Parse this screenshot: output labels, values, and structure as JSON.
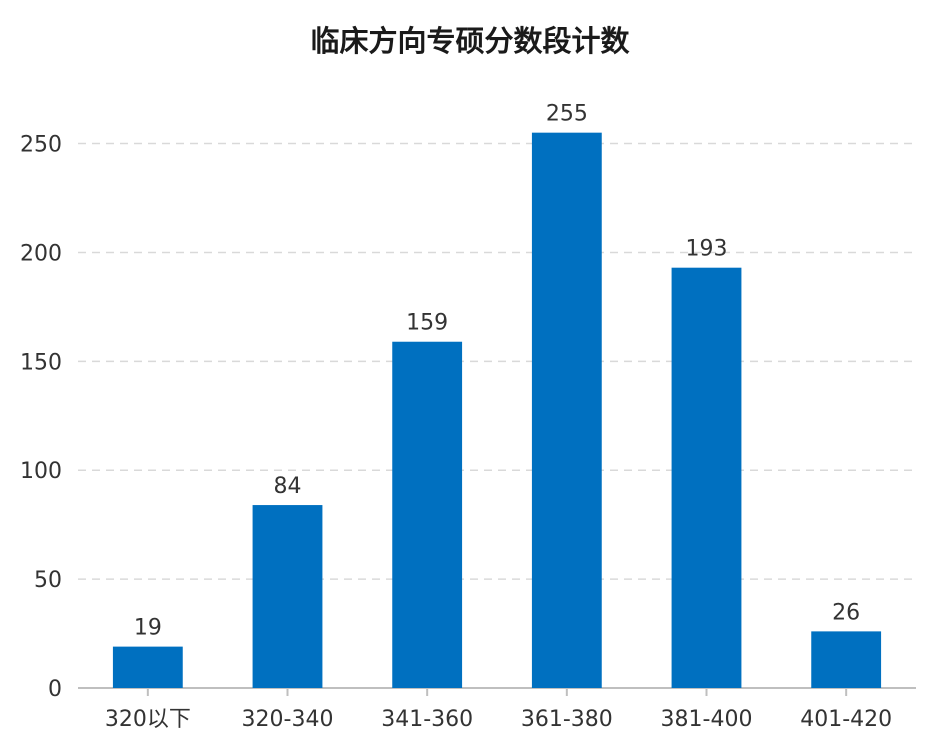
{
  "chart_data": {
    "type": "bar",
    "title": "临床方向专硕分数段计数",
    "categories": [
      "320以下",
      "320-340",
      "341-360",
      "361-380",
      "381-400",
      "401-420"
    ],
    "values": [
      19,
      84,
      159,
      255,
      193,
      26
    ],
    "ylim": [
      0,
      270
    ],
    "yticks": [
      0,
      50,
      100,
      150,
      200,
      250
    ],
    "xlabel": "",
    "ylabel": "",
    "grid": true,
    "legend": "none",
    "colors": {
      "bar": "#0070C0",
      "grid": "#D9D9D9",
      "axis": "#BFBFBF",
      "text": "#333333"
    }
  }
}
